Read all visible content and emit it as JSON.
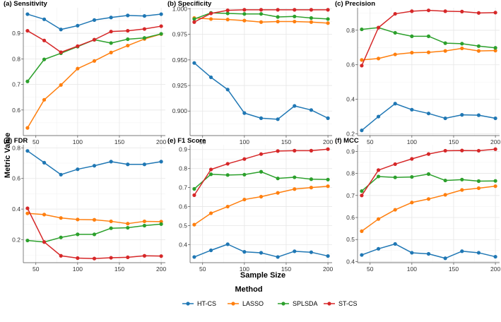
{
  "chart_data": {
    "type": "line",
    "figure": {
      "xlabel": "Sample Size",
      "ylabel": "Metric Value",
      "legend_title": "Method",
      "legend_position": "bottom",
      "grid": true
    },
    "methods": [
      {
        "name": "HT-CS",
        "color": "#1f77b4"
      },
      {
        "name": "LASSO",
        "color": "#ff7f0e"
      },
      {
        "name": "SPLSDA",
        "color": "#2ca02c"
      },
      {
        "name": "ST-CS",
        "color": "#d62728"
      }
    ],
    "x": [
      40,
      60,
      80,
      100,
      120,
      140,
      160,
      180,
      200
    ],
    "xlim": [
      35,
      205
    ],
    "xticks": [
      50,
      100,
      150,
      200
    ],
    "panels": [
      {
        "title": "(a) Sensitivity",
        "ylim": [
          0.5,
          1.0
        ],
        "yticks": [
          0.6,
          0.7,
          0.8,
          0.9
        ],
        "tick_decimals": 1,
        "series": [
          {
            "method": "HT-CS",
            "values": [
              0.975,
              0.955,
              0.915,
              0.93,
              0.952,
              0.962,
              0.97,
              0.968,
              0.975
            ]
          },
          {
            "method": "LASSO",
            "values": [
              0.53,
              0.64,
              0.698,
              0.762,
              0.792,
              0.825,
              0.852,
              0.878,
              0.897
            ]
          },
          {
            "method": "SPLSDA",
            "values": [
              0.712,
              0.798,
              0.822,
              0.848,
              0.875,
              0.862,
              0.877,
              0.882,
              0.898
            ]
          },
          {
            "method": "ST-CS",
            "values": [
              0.91,
              0.872,
              0.826,
              0.85,
              0.875,
              0.907,
              0.91,
              0.917,
              0.928
            ]
          }
        ]
      },
      {
        "title": "(b) Specificity",
        "ylim": [
          0.876,
          1.001
        ],
        "yticks": [
          0.9,
          0.925,
          0.95,
          0.975,
          1.0
        ],
        "tick_decimals": 3,
        "series": [
          {
            "method": "HT-CS",
            "values": [
              0.947,
              0.933,
              0.921,
              0.898,
              0.893,
              0.892,
              0.905,
              0.901,
              0.893
            ]
          },
          {
            "method": "LASSO",
            "values": [
              0.991,
              0.99,
              0.9895,
              0.9885,
              0.987,
              0.9875,
              0.9875,
              0.987,
              0.986
            ]
          },
          {
            "method": "SPLSDA",
            "values": [
              0.99,
              0.996,
              0.9955,
              0.995,
              0.995,
              0.992,
              0.9925,
              0.991,
              0.99
            ]
          },
          {
            "method": "ST-CS",
            "values": [
              0.987,
              0.9955,
              0.9985,
              0.999,
              0.999,
              0.999,
              0.999,
              0.999,
              0.999
            ]
          }
        ]
      },
      {
        "title": "(c) Precision",
        "ylim": [
          0.19,
          0.93
        ],
        "yticks": [
          0.2,
          0.4,
          0.6,
          0.8
        ],
        "tick_decimals": 1,
        "series": [
          {
            "method": "HT-CS",
            "values": [
              0.22,
              0.3,
              0.375,
              0.34,
              0.318,
              0.29,
              0.31,
              0.308,
              0.29
            ]
          },
          {
            "method": "LASSO",
            "values": [
              0.628,
              0.636,
              0.66,
              0.67,
              0.672,
              0.68,
              0.695,
              0.68,
              0.682
            ]
          },
          {
            "method": "SPLSDA",
            "values": [
              0.805,
              0.815,
              0.785,
              0.765,
              0.765,
              0.725,
              0.722,
              0.708,
              0.698
            ]
          },
          {
            "method": "ST-CS",
            "values": [
              0.595,
              0.815,
              0.895,
              0.91,
              0.915,
              0.91,
              0.908,
              0.9,
              0.902
            ]
          }
        ]
      },
      {
        "title": "(d) FDR",
        "ylim": [
          0.05,
          0.82
        ],
        "yticks": [
          0.2,
          0.4,
          0.6,
          0.8
        ],
        "tick_decimals": 1,
        "series": [
          {
            "method": "HT-CS",
            "values": [
              0.78,
              0.703,
              0.625,
              0.66,
              0.683,
              0.71,
              0.692,
              0.692,
              0.71
            ]
          },
          {
            "method": "LASSO",
            "values": [
              0.372,
              0.364,
              0.342,
              0.332,
              0.33,
              0.32,
              0.305,
              0.32,
              0.318
            ]
          },
          {
            "method": "SPLSDA",
            "values": [
              0.195,
              0.185,
              0.215,
              0.235,
              0.235,
              0.275,
              0.278,
              0.292,
              0.302
            ]
          },
          {
            "method": "ST-CS",
            "values": [
              0.405,
              0.185,
              0.095,
              0.08,
              0.077,
              0.082,
              0.085,
              0.095,
              0.093
            ]
          }
        ]
      },
      {
        "title": "(e) F1 Score",
        "ylim": [
          0.305,
          0.925
        ],
        "yticks": [
          0.4,
          0.5,
          0.6,
          0.7,
          0.8,
          0.9
        ],
        "tick_decimals": 1,
        "series": [
          {
            "method": "HT-CS",
            "values": [
              0.335,
              0.37,
              0.402,
              0.362,
              0.357,
              0.335,
              0.365,
              0.36,
              0.34
            ]
          },
          {
            "method": "LASSO",
            "values": [
              0.505,
              0.565,
              0.6,
              0.637,
              0.652,
              0.672,
              0.692,
              0.7,
              0.707
            ]
          },
          {
            "method": "SPLSDA",
            "values": [
              0.693,
              0.77,
              0.766,
              0.768,
              0.783,
              0.748,
              0.754,
              0.744,
              0.742
            ]
          },
          {
            "method": "ST-CS",
            "values": [
              0.66,
              0.795,
              0.825,
              0.85,
              0.876,
              0.892,
              0.894,
              0.894,
              0.902
            ]
          }
        ]
      },
      {
        "title": "(f) MCC",
        "ylim": [
          0.395,
          0.93
        ],
        "yticks": [
          0.4,
          0.5,
          0.6,
          0.7,
          0.8,
          0.9
        ],
        "tick_decimals": 1,
        "series": [
          {
            "method": "HT-CS",
            "values": [
              0.43,
              0.458,
              0.48,
              0.44,
              0.435,
              0.415,
              0.447,
              0.44,
              0.422
            ]
          },
          {
            "method": "LASSO",
            "values": [
              0.538,
              0.593,
              0.635,
              0.668,
              0.684,
              0.703,
              0.725,
              0.733,
              0.742
            ]
          },
          {
            "method": "SPLSDA",
            "values": [
              0.72,
              0.786,
              0.782,
              0.784,
              0.797,
              0.768,
              0.772,
              0.765,
              0.766
            ]
          },
          {
            "method": "ST-CS",
            "values": [
              0.7,
              0.815,
              0.842,
              0.866,
              0.888,
              0.903,
              0.904,
              0.903,
              0.91
            ]
          }
        ]
      }
    ]
  }
}
